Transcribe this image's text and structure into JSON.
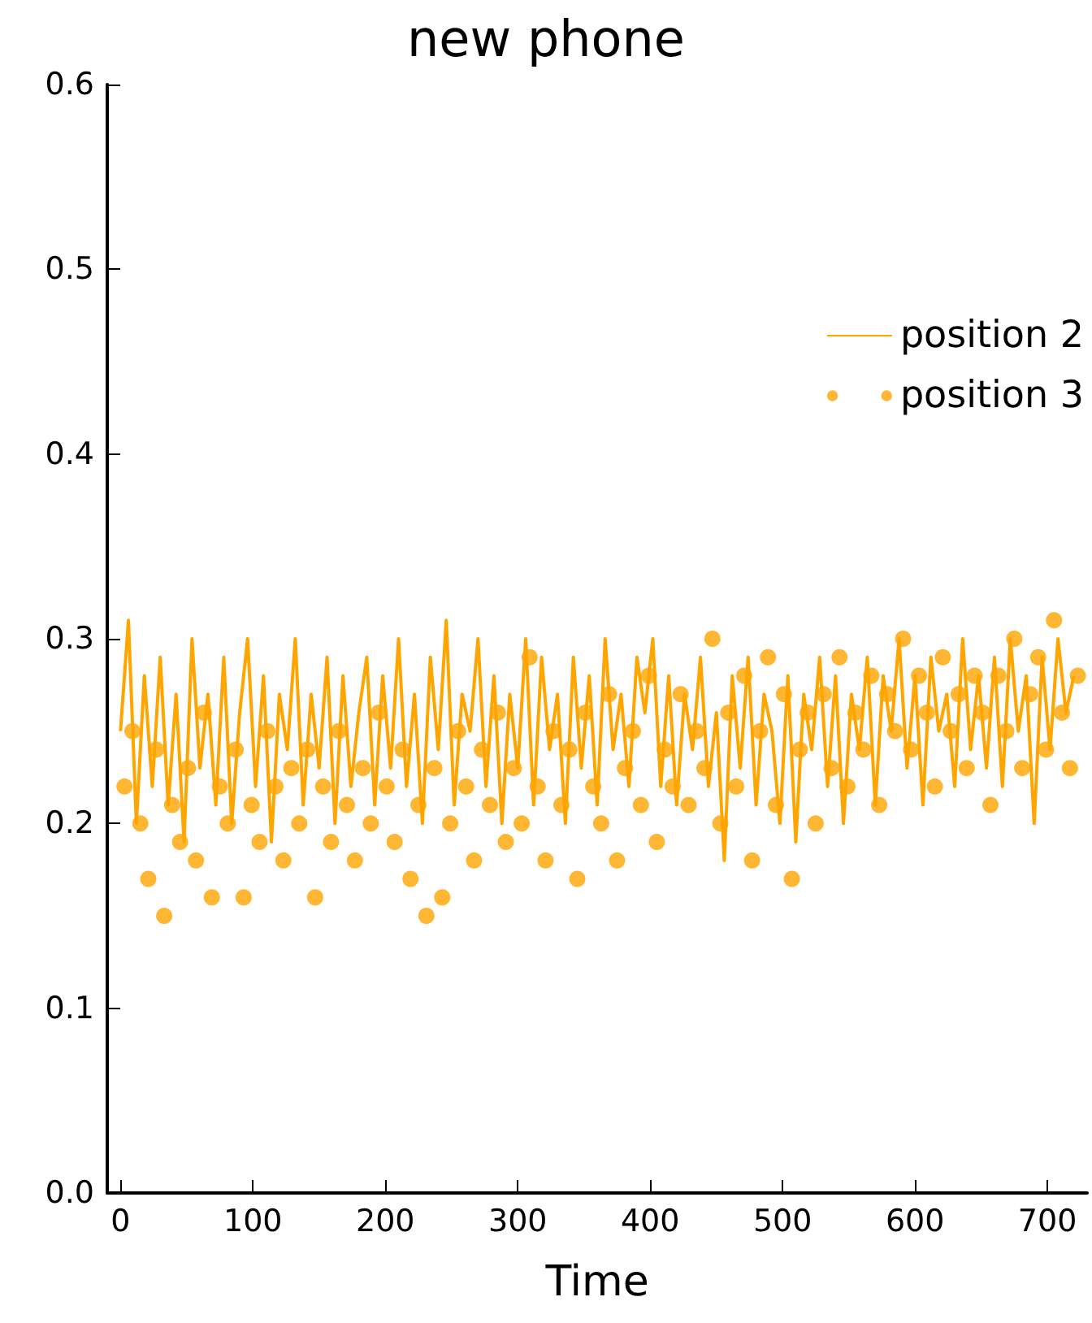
{
  "chart_data": {
    "type": "line",
    "title": "new phone",
    "xlabel": "Time",
    "xlim": [
      -10,
      730
    ],
    "xticks": [
      0,
      100,
      200,
      300,
      400,
      500,
      600,
      700
    ],
    "ylim": [
      0,
      0.6
    ],
    "yticks": [
      {
        "value": 0,
        "label": "0.0"
      },
      0.1,
      0.2,
      0.3,
      0.4,
      0.5,
      0.6
    ],
    "grid": false,
    "legend": "right",
    "series": [
      {
        "name": "position 2",
        "marker": "none",
        "line_style": "solid",
        "color": "#ffa500",
        "x": [
          0,
          6,
          12,
          18,
          24,
          30,
          36,
          42,
          48,
          54,
          60,
          66,
          72,
          78,
          84,
          90,
          96,
          102,
          108,
          114,
          120,
          126,
          132,
          138,
          144,
          150,
          156,
          162,
          168,
          174,
          180,
          186,
          192,
          198,
          204,
          210,
          216,
          222,
          228,
          234,
          240,
          246,
          252,
          258,
          264,
          270,
          276,
          282,
          288,
          294,
          300,
          306,
          312,
          318,
          324,
          330,
          336,
          342,
          348,
          354,
          360,
          366,
          372,
          378,
          384,
          390,
          396,
          402,
          408,
          414,
          420,
          426,
          432,
          438,
          444,
          450,
          456,
          462,
          468,
          474,
          480,
          486,
          492,
          498,
          504,
          510,
          516,
          522,
          528,
          534,
          540,
          546,
          552,
          558,
          564,
          570,
          576,
          582,
          588,
          594,
          600,
          606,
          612,
          618,
          624,
          630,
          636,
          642,
          648,
          654,
          660,
          666,
          672,
          678,
          684,
          690,
          696,
          702,
          708,
          714,
          720
        ],
        "values": [
          0.25,
          0.31,
          0.2,
          0.28,
          0.22,
          0.29,
          0.21,
          0.27,
          0.19,
          0.3,
          0.23,
          0.27,
          0.21,
          0.29,
          0.2,
          0.26,
          0.3,
          0.22,
          0.28,
          0.19,
          0.27,
          0.24,
          0.3,
          0.21,
          0.27,
          0.23,
          0.29,
          0.2,
          0.28,
          0.22,
          0.26,
          0.29,
          0.21,
          0.28,
          0.23,
          0.3,
          0.22,
          0.27,
          0.2,
          0.29,
          0.24,
          0.31,
          0.21,
          0.27,
          0.25,
          0.3,
          0.22,
          0.28,
          0.2,
          0.27,
          0.23,
          0.3,
          0.21,
          0.29,
          0.24,
          0.27,
          0.2,
          0.29,
          0.23,
          0.28,
          0.21,
          0.3,
          0.24,
          0.27,
          0.22,
          0.29,
          0.26,
          0.3,
          0.22,
          0.28,
          0.21,
          0.27,
          0.24,
          0.29,
          0.22,
          0.26,
          0.18,
          0.28,
          0.23,
          0.29,
          0.21,
          0.27,
          0.25,
          0.2,
          0.28,
          0.19,
          0.27,
          0.24,
          0.29,
          0.22,
          0.28,
          0.2,
          0.27,
          0.24,
          0.29,
          0.21,
          0.28,
          0.25,
          0.3,
          0.23,
          0.28,
          0.21,
          0.29,
          0.25,
          0.27,
          0.22,
          0.3,
          0.24,
          0.28,
          0.23,
          0.29,
          0.22,
          0.3,
          0.25,
          0.28,
          0.2,
          0.29,
          0.24,
          0.3,
          0.26,
          0.28
        ]
      },
      {
        "name": "position 3",
        "type": "scatter",
        "marker": "circle",
        "color": "#ffa500",
        "x": [
          3,
          9,
          15,
          21,
          27,
          33,
          39,
          45,
          51,
          57,
          63,
          69,
          75,
          81,
          87,
          93,
          99,
          105,
          111,
          117,
          123,
          129,
          135,
          141,
          147,
          153,
          159,
          165,
          171,
          177,
          183,
          189,
          195,
          201,
          207,
          213,
          219,
          225,
          231,
          237,
          243,
          249,
          255,
          261,
          267,
          273,
          279,
          285,
          291,
          297,
          303,
          309,
          315,
          321,
          327,
          333,
          339,
          345,
          351,
          357,
          363,
          369,
          375,
          381,
          387,
          393,
          399,
          405,
          411,
          417,
          423,
          429,
          435,
          441,
          447,
          453,
          459,
          465,
          471,
          477,
          483,
          489,
          495,
          501,
          507,
          513,
          519,
          525,
          531,
          537,
          543,
          549,
          555,
          561,
          567,
          573,
          579,
          585,
          591,
          597,
          603,
          609,
          615,
          621,
          627,
          633,
          639,
          645,
          651,
          657,
          663,
          669,
          675,
          681,
          687,
          693,
          699,
          705,
          711,
          717,
          723
        ],
        "values": [
          0.22,
          0.25,
          0.2,
          0.17,
          0.24,
          0.15,
          0.21,
          0.19,
          0.23,
          0.18,
          0.26,
          0.16,
          0.22,
          0.2,
          0.24,
          0.16,
          0.21,
          0.19,
          0.25,
          0.22,
          0.18,
          0.23,
          0.2,
          0.24,
          0.16,
          0.22,
          0.19,
          0.25,
          0.21,
          0.18,
          0.23,
          0.2,
          0.26,
          0.22,
          0.19,
          0.24,
          0.17,
          0.21,
          0.15,
          0.23,
          0.16,
          0.2,
          0.25,
          0.22,
          0.18,
          0.24,
          0.21,
          0.26,
          0.19,
          0.23,
          0.2,
          0.29,
          0.22,
          0.18,
          0.25,
          0.21,
          0.24,
          0.17,
          0.26,
          0.22,
          0.2,
          0.27,
          0.18,
          0.23,
          0.25,
          0.21,
          0.28,
          0.19,
          0.24,
          0.22,
          0.27,
          0.21,
          0.25,
          0.23,
          0.3,
          0.2,
          0.26,
          0.22,
          0.28,
          0.18,
          0.25,
          0.29,
          0.21,
          0.27,
          0.17,
          0.24,
          0.26,
          0.2,
          0.27,
          0.23,
          0.29,
          0.22,
          0.26,
          0.24,
          0.28,
          0.21,
          0.27,
          0.25,
          0.3,
          0.24,
          0.28,
          0.26,
          0.22,
          0.29,
          0.25,
          0.27,
          0.23,
          0.28,
          0.26,
          0.21,
          0.28,
          0.25,
          0.3,
          0.23,
          0.27,
          0.29,
          0.24,
          0.31,
          0.26,
          0.23,
          0.28
        ]
      }
    ]
  }
}
